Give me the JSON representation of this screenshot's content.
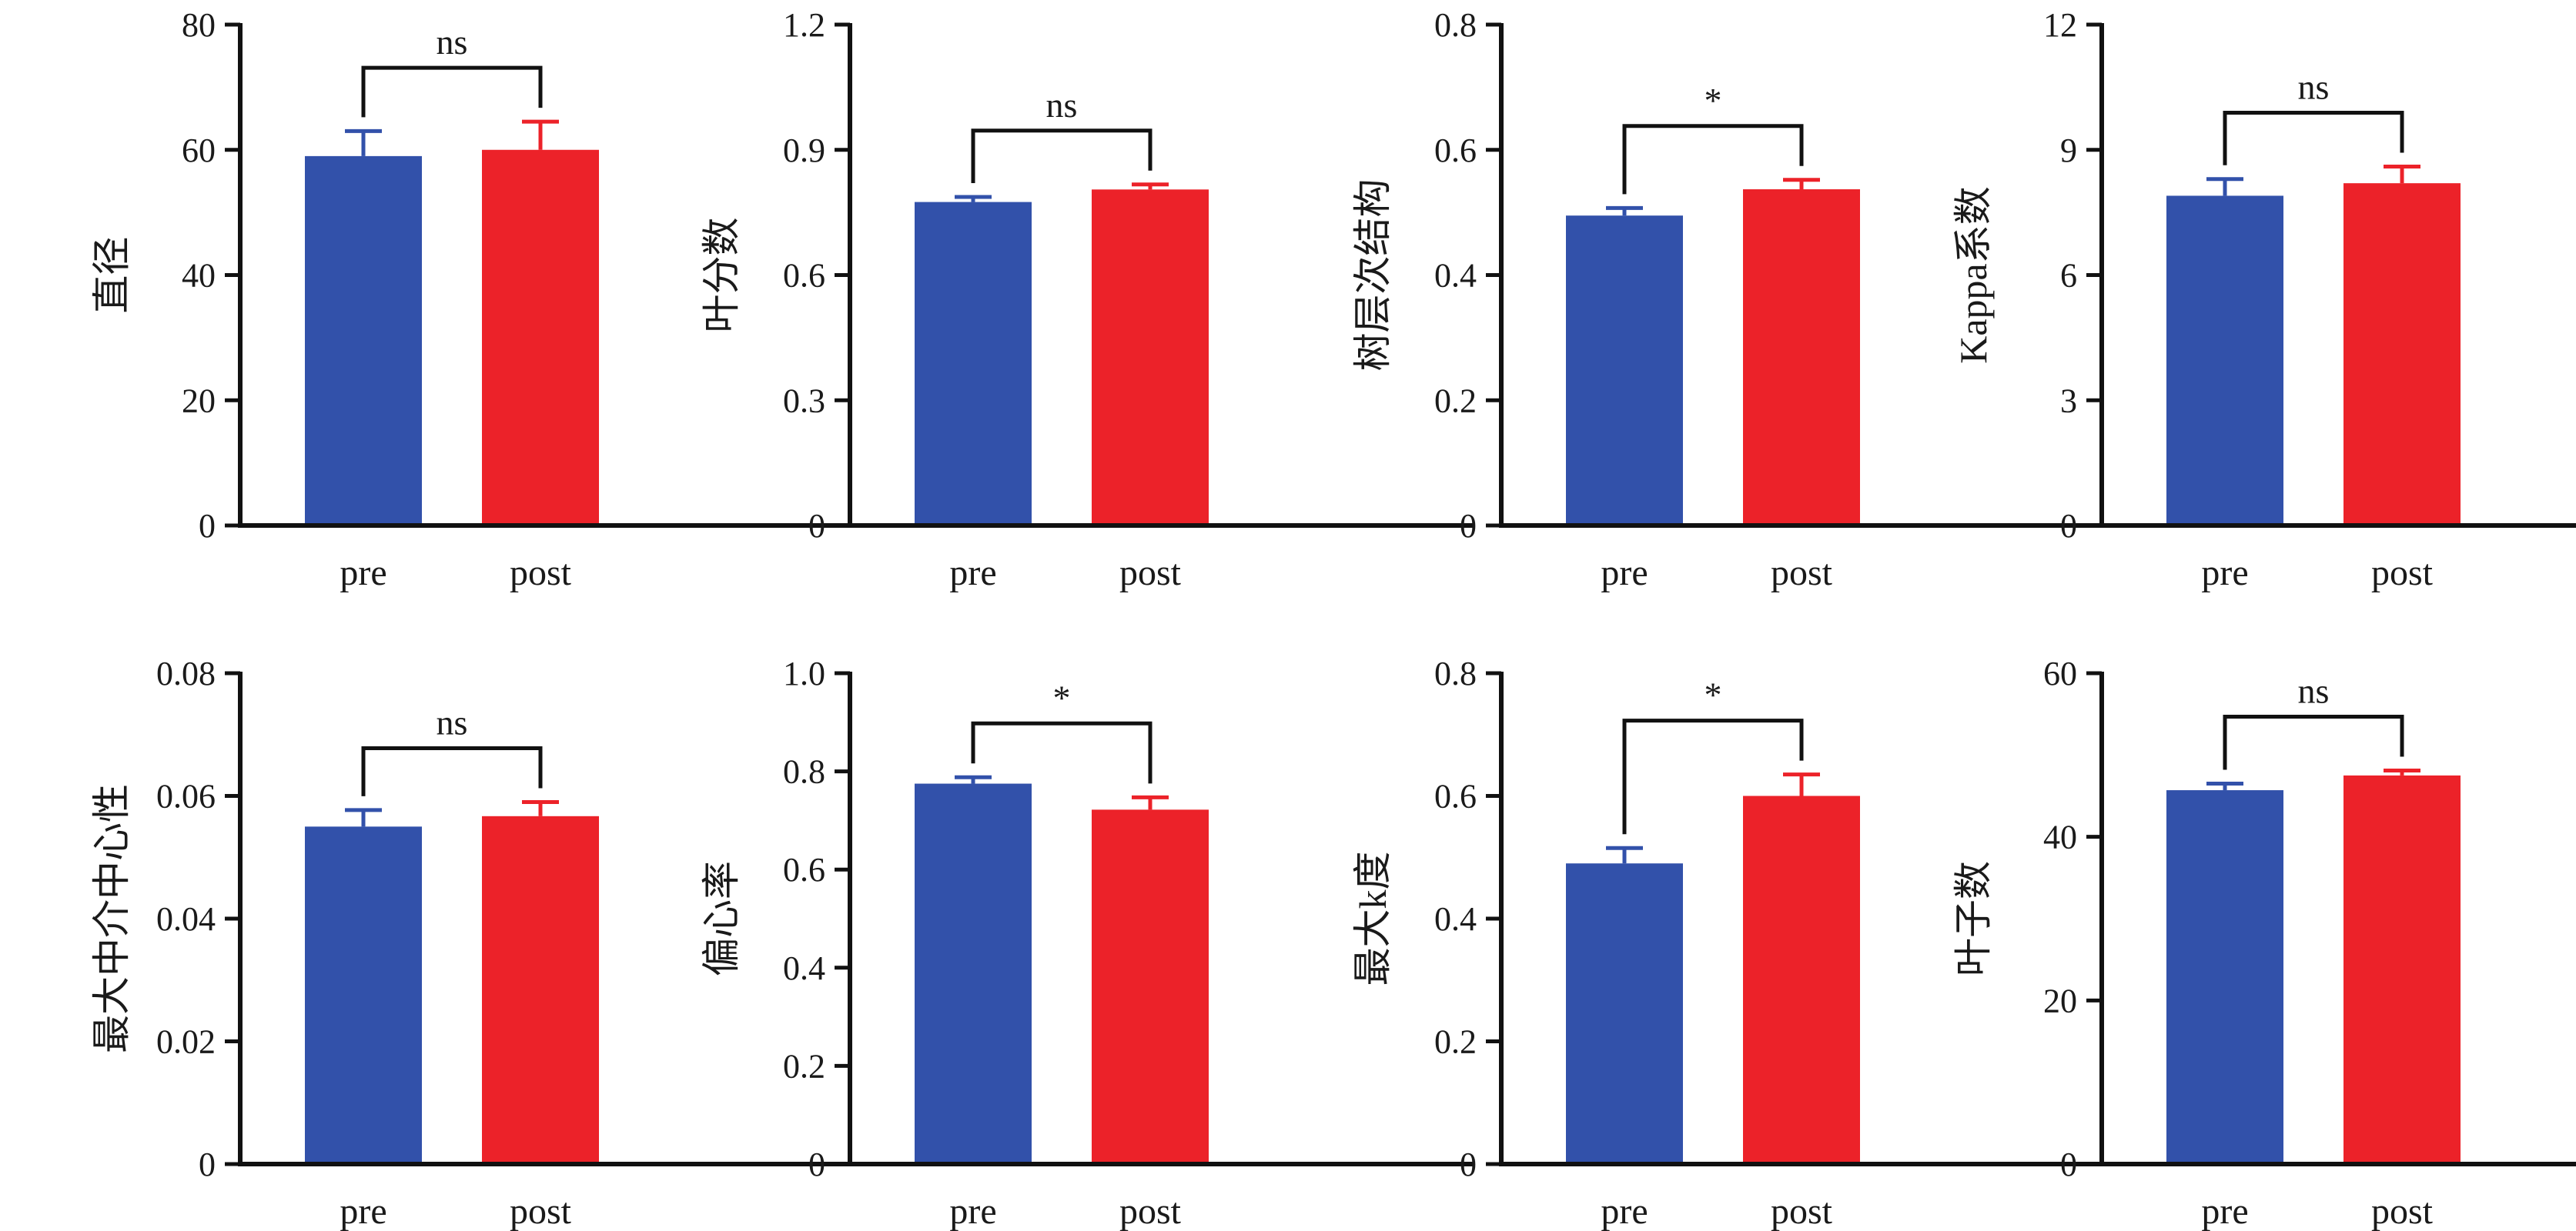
{
  "colors": {
    "pre": "#3251aa",
    "post": "#ec2229",
    "axis": "#111111"
  },
  "chart_data": [
    {
      "type": "bar",
      "ylabel": "直径",
      "categories": [
        "pre",
        "post"
      ],
      "values": [
        59,
        60
      ],
      "errors": [
        4,
        4.5
      ],
      "ylim": [
        0,
        80
      ],
      "yticks": [
        "0",
        "20",
        "40",
        "60",
        "80"
      ],
      "significance": "ns"
    },
    {
      "type": "bar",
      "ylabel": "叶分数",
      "categories": [
        "pre",
        "post"
      ],
      "values": [
        0.775,
        0.805
      ],
      "errors": [
        0.012,
        0.012
      ],
      "ylim": [
        0,
        1.2
      ],
      "yticks": [
        "0",
        "0.3",
        "0.6",
        "0.9",
        "1.2"
      ],
      "significance": "ns"
    },
    {
      "type": "bar",
      "ylabel": "树层次结构",
      "categories": [
        "pre",
        "post"
      ],
      "values": [
        0.495,
        0.537
      ],
      "errors": [
        0.012,
        0.015
      ],
      "ylim": [
        0,
        0.8
      ],
      "yticks": [
        "0",
        "0.2",
        "0.4",
        "0.6",
        "0.8"
      ],
      "significance": "*"
    },
    {
      "type": "bar",
      "ylabel": "Kappa系数",
      "categories": [
        "pre",
        "post"
      ],
      "values": [
        7.9,
        8.2
      ],
      "errors": [
        0.4,
        0.4
      ],
      "ylim": [
        0,
        12
      ],
      "yticks": [
        "0",
        "3",
        "6",
        "9",
        "12"
      ],
      "significance": "ns"
    },
    {
      "type": "bar",
      "ylabel": "最大中介中心性",
      "categories": [
        "pre",
        "post"
      ],
      "values": [
        0.055,
        0.0567
      ],
      "errors": [
        0.0027,
        0.0023
      ],
      "ylim": [
        0,
        0.08
      ],
      "yticks": [
        "0",
        "0.02",
        "0.04",
        "0.06",
        "0.08"
      ],
      "significance": "ns"
    },
    {
      "type": "bar",
      "ylabel": "偏心率",
      "categories": [
        "pre",
        "post"
      ],
      "values": [
        0.775,
        0.722
      ],
      "errors": [
        0.013,
        0.025
      ],
      "ylim": [
        0,
        1.0
      ],
      "yticks": [
        "0",
        "0.2",
        "0.4",
        "0.6",
        "0.8",
        "1.0"
      ],
      "significance": "*"
    },
    {
      "type": "bar",
      "ylabel": "最大k度",
      "categories": [
        "pre",
        "post"
      ],
      "values": [
        0.49,
        0.6
      ],
      "errors": [
        0.025,
        0.035
      ],
      "ylim": [
        0,
        0.8
      ],
      "yticks": [
        "0",
        "0.2",
        "0.4",
        "0.6",
        "0.8"
      ],
      "significance": "*"
    },
    {
      "type": "bar",
      "ylabel": "叶子数",
      "categories": [
        "pre",
        "post"
      ],
      "values": [
        45.7,
        47.5
      ],
      "errors": [
        0.8,
        0.6
      ],
      "ylim": [
        0,
        60
      ],
      "yticks": [
        "0",
        "20",
        "40",
        "60"
      ],
      "significance": "ns"
    }
  ]
}
